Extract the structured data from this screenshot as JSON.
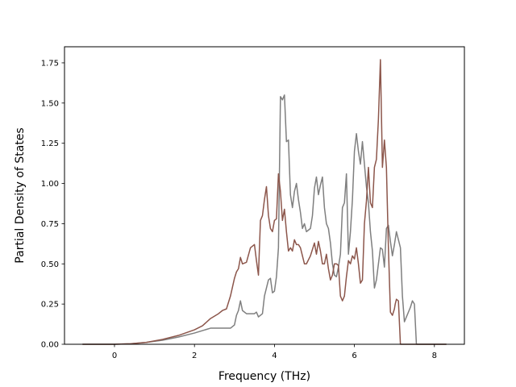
{
  "chart_data": {
    "type": "line",
    "xlabel": "Frequency (THz)",
    "ylabel": "Partial Density of States",
    "xlim": [
      -1.25,
      8.75
    ],
    "ylim": [
      0,
      1.85
    ],
    "xticks": [
      0,
      2,
      4,
      6,
      8
    ],
    "yticks": [
      0.0,
      0.25,
      0.5,
      0.75,
      1.0,
      1.25,
      1.5,
      1.75
    ],
    "yticklabels": [
      "0.00",
      "0.25",
      "0.50",
      "0.75",
      "1.00",
      "1.25",
      "1.50",
      "1.75"
    ],
    "grid": false,
    "series": [
      {
        "color": "#7f7f7f",
        "x": [
          -0.8,
          0.0,
          0.4,
          0.8,
          1.2,
          1.6,
          2.0,
          2.2,
          2.4,
          2.5,
          2.6,
          2.8,
          2.9,
          3.0,
          3.05,
          3.1,
          3.15,
          3.2,
          3.3,
          3.4,
          3.5,
          3.55,
          3.6,
          3.7,
          3.75,
          3.8,
          3.85,
          3.9,
          3.95,
          4.0,
          4.05,
          4.1,
          4.15,
          4.2,
          4.25,
          4.3,
          4.35,
          4.4,
          4.45,
          4.5,
          4.55,
          4.6,
          4.65,
          4.7,
          4.75,
          4.8,
          4.9,
          4.95,
          5.0,
          5.05,
          5.1,
          5.15,
          5.2,
          5.25,
          5.3,
          5.35,
          5.4,
          5.45,
          5.5,
          5.55,
          5.6,
          5.65,
          5.7,
          5.75,
          5.8,
          5.85,
          5.9,
          5.95,
          6.0,
          6.05,
          6.1,
          6.15,
          6.2,
          6.25,
          6.3,
          6.35,
          6.4,
          6.45,
          6.5,
          6.55,
          6.6,
          6.65,
          6.7,
          6.75,
          6.8,
          6.85,
          6.9,
          6.95,
          7.0,
          7.05,
          7.1,
          7.15,
          7.2,
          7.25,
          7.3,
          7.35,
          7.4,
          7.45,
          7.5,
          7.55,
          7.6,
          7.65,
          8.3
        ],
        "values": [
          0,
          0,
          0.003,
          0.012,
          0.025,
          0.045,
          0.07,
          0.085,
          0.1,
          0.1,
          0.1,
          0.1,
          0.1,
          0.12,
          0.18,
          0.21,
          0.27,
          0.21,
          0.19,
          0.19,
          0.19,
          0.2,
          0.17,
          0.19,
          0.3,
          0.35,
          0.4,
          0.41,
          0.32,
          0.33,
          0.42,
          0.6,
          1.54,
          1.52,
          1.55,
          1.26,
          1.27,
          0.93,
          0.85,
          0.95,
          1.0,
          0.9,
          0.82,
          0.72,
          0.75,
          0.7,
          0.72,
          0.8,
          0.97,
          1.04,
          0.93,
          0.99,
          1.04,
          0.85,
          0.75,
          0.72,
          0.63,
          0.5,
          0.43,
          0.42,
          0.48,
          0.56,
          0.85,
          0.88,
          1.06,
          0.56,
          0.7,
          0.9,
          1.2,
          1.31,
          1.2,
          1.12,
          1.26,
          1.12,
          0.98,
          0.88,
          0.7,
          0.58,
          0.35,
          0.4,
          0.5,
          0.6,
          0.59,
          0.48,
          0.72,
          0.74,
          0.64,
          0.55,
          0.62,
          0.7,
          0.65,
          0.6,
          0.3,
          0.14,
          0.17,
          0.2,
          0.23,
          0.27,
          0.25,
          0.0,
          0.0,
          0.0,
          0.0
        ]
      },
      {
        "color": "#8c564b",
        "x": [
          -0.8,
          0.0,
          0.4,
          0.8,
          1.2,
          1.6,
          2.0,
          2.2,
          2.4,
          2.5,
          2.6,
          2.7,
          2.8,
          2.9,
          3.0,
          3.05,
          3.1,
          3.15,
          3.2,
          3.3,
          3.4,
          3.5,
          3.55,
          3.6,
          3.65,
          3.7,
          3.75,
          3.8,
          3.85,
          3.9,
          3.95,
          4.0,
          4.05,
          4.1,
          4.15,
          4.2,
          4.25,
          4.3,
          4.35,
          4.4,
          4.45,
          4.5,
          4.55,
          4.6,
          4.65,
          4.7,
          4.75,
          4.8,
          4.9,
          5.0,
          5.05,
          5.1,
          5.15,
          5.2,
          5.25,
          5.3,
          5.35,
          5.4,
          5.45,
          5.5,
          5.55,
          5.6,
          5.65,
          5.7,
          5.75,
          5.8,
          5.85,
          5.9,
          5.95,
          6.0,
          6.05,
          6.1,
          6.15,
          6.2,
          6.25,
          6.3,
          6.35,
          6.4,
          6.45,
          6.5,
          6.55,
          6.6,
          6.65,
          6.7,
          6.75,
          6.8,
          6.85,
          6.9,
          6.95,
          7.0,
          7.02,
          7.05,
          7.1,
          7.15,
          7.2,
          7.25,
          7.3,
          7.35,
          7.4,
          7.45,
          7.5,
          7.55,
          7.6,
          7.65,
          8.3
        ],
        "values": [
          0,
          0,
          0.003,
          0.012,
          0.03,
          0.055,
          0.09,
          0.115,
          0.16,
          0.175,
          0.19,
          0.21,
          0.22,
          0.3,
          0.41,
          0.45,
          0.47,
          0.54,
          0.5,
          0.51,
          0.6,
          0.62,
          0.52,
          0.43,
          0.77,
          0.8,
          0.9,
          0.98,
          0.8,
          0.72,
          0.7,
          0.77,
          0.78,
          1.06,
          0.95,
          0.77,
          0.84,
          0.7,
          0.58,
          0.6,
          0.58,
          0.65,
          0.62,
          0.62,
          0.6,
          0.55,
          0.5,
          0.5,
          0.55,
          0.63,
          0.56,
          0.64,
          0.58,
          0.5,
          0.5,
          0.56,
          0.47,
          0.4,
          0.43,
          0.5,
          0.5,
          0.49,
          0.3,
          0.27,
          0.3,
          0.42,
          0.52,
          0.5,
          0.55,
          0.53,
          0.6,
          0.5,
          0.38,
          0.4,
          0.75,
          0.89,
          1.1,
          0.88,
          0.85,
          1.1,
          1.15,
          1.4,
          1.77,
          1.1,
          1.27,
          1.1,
          0.6,
          0.2,
          0.18,
          0.22,
          0.25,
          0.28,
          0.27,
          0.0,
          0.0,
          0.0,
          0.0,
          0.0,
          0.0,
          0.0,
          0.0,
          0.0,
          0.0,
          0.0,
          0.0
        ]
      }
    ]
  }
}
